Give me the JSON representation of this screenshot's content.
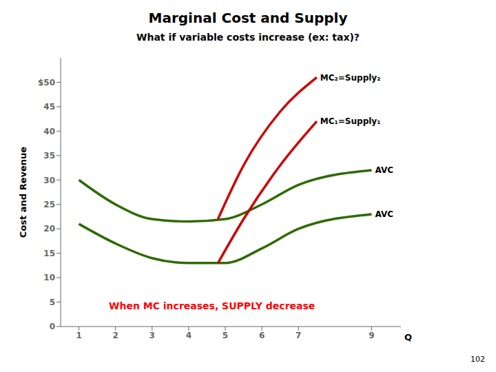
{
  "chart_data": {
    "type": "line",
    "title": "Marginal Cost and Supply",
    "subtitle": "What if variable costs increase (ex: tax)?",
    "x_label": "Q",
    "y_label": "Cost and Revenue",
    "xlim": [
      0.5,
      9.8
    ],
    "xticks": [
      1,
      2,
      3,
      4,
      5,
      6,
      7,
      9
    ],
    "ylim": [
      0,
      55
    ],
    "yticks": [
      0,
      5,
      10,
      15,
      20,
      25,
      30,
      35,
      40,
      45,
      {
        "value": 50,
        "label": "$50"
      }
    ],
    "grid": false,
    "series": [
      {
        "name": "AVC",
        "color": "#2d6a00",
        "x": [
          1,
          2,
          3,
          4,
          5,
          6,
          7,
          9
        ],
        "values": [
          21,
          17,
          14,
          13,
          13,
          16,
          20,
          23
        ]
      },
      {
        "name": "AVC",
        "color": "#2d6a00",
        "x": [
          1,
          2,
          3,
          4,
          5,
          6,
          7,
          9
        ],
        "values": [
          30,
          25,
          22,
          21.5,
          22,
          25,
          29,
          32
        ]
      },
      {
        "name": "MC₁=Supply₁",
        "color": "#cc0000",
        "x": [
          4.8,
          5.5,
          6.5,
          7.5
        ],
        "values": [
          13,
          22,
          33,
          42
        ]
      },
      {
        "name": "MC₂=Supply₂",
        "color": "#cc0000",
        "x": [
          4.8,
          5.5,
          6.5,
          7.5
        ],
        "values": [
          22,
          33,
          44,
          51
        ]
      }
    ],
    "annotations": [
      {
        "text": "When MC increases, SUPPLY decrease",
        "color": "red"
      }
    ],
    "page_number": "102"
  }
}
